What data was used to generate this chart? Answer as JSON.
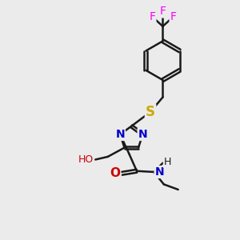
{
  "background_color": "#ebebeb",
  "bond_color": "#1a1a1a",
  "bond_width": 1.8,
  "atom_colors": {
    "C": "#1a1a1a",
    "N": "#0000cc",
    "O": "#cc0000",
    "S": "#ccaa00",
    "F": "#ff00ff",
    "H": "#1a1a1a"
  },
  "font_size": 9,
  "figsize": [
    3.0,
    3.0
  ],
  "dpi": 100
}
